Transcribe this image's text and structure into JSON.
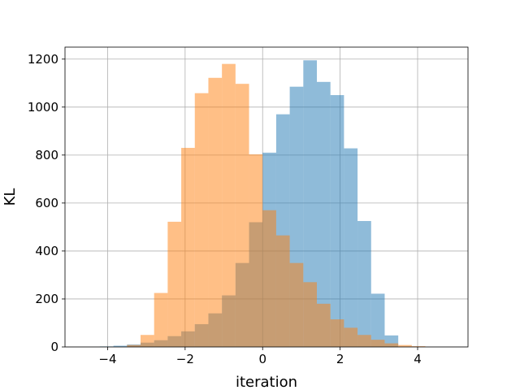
{
  "chart_data": {
    "type": "bar",
    "subtype": "overlapping-histogram",
    "xlabel": "iteration",
    "ylabel": "KL",
    "xlim": [
      -5.1,
      5.3
    ],
    "ylim": [
      0,
      1250
    ],
    "xticks": [
      -4,
      -2,
      0,
      2,
      4
    ],
    "yticks": [
      0,
      200,
      400,
      600,
      800,
      1000,
      1200
    ],
    "grid": true,
    "series": [
      {
        "color": "#1f77b4",
        "alpha": 0.5,
        "bins": [
          {
            "x0": -4.2,
            "x1": -3.85,
            "count": 2
          },
          {
            "x0": -3.85,
            "x1": -3.5,
            "count": 5
          },
          {
            "x0": -3.5,
            "x1": -3.15,
            "count": 10
          },
          {
            "x0": -3.15,
            "x1": -2.8,
            "count": 18
          },
          {
            "x0": -2.8,
            "x1": -2.45,
            "count": 28
          },
          {
            "x0": -2.45,
            "x1": -2.1,
            "count": 45
          },
          {
            "x0": -2.1,
            "x1": -1.75,
            "count": 65
          },
          {
            "x0": -1.75,
            "x1": -1.4,
            "count": 95
          },
          {
            "x0": -1.4,
            "x1": -1.05,
            "count": 140
          },
          {
            "x0": -1.05,
            "x1": -0.7,
            "count": 215
          },
          {
            "x0": -0.7,
            "x1": -0.35,
            "count": 350
          },
          {
            "x0": -0.35,
            "x1": 0.0,
            "count": 520
          },
          {
            "x0": 0.0,
            "x1": 0.35,
            "count": 810
          },
          {
            "x0": 0.35,
            "x1": 0.7,
            "count": 970
          },
          {
            "x0": 0.7,
            "x1": 1.05,
            "count": 1085
          },
          {
            "x0": 1.05,
            "x1": 1.4,
            "count": 1195
          },
          {
            "x0": 1.4,
            "x1": 1.75,
            "count": 1105
          },
          {
            "x0": 1.75,
            "x1": 2.1,
            "count": 1050
          },
          {
            "x0": 2.1,
            "x1": 2.45,
            "count": 828
          },
          {
            "x0": 2.45,
            "x1": 2.8,
            "count": 525
          },
          {
            "x0": 2.8,
            "x1": 3.15,
            "count": 222
          },
          {
            "x0": 3.15,
            "x1": 3.5,
            "count": 48
          }
        ]
      },
      {
        "color": "#ff7f0e",
        "alpha": 0.5,
        "bins": [
          {
            "x0": -3.5,
            "x1": -3.15,
            "count": 8
          },
          {
            "x0": -3.15,
            "x1": -2.8,
            "count": 50
          },
          {
            "x0": -2.8,
            "x1": -2.45,
            "count": 225
          },
          {
            "x0": -2.45,
            "x1": -2.1,
            "count": 522
          },
          {
            "x0": -2.1,
            "x1": -1.75,
            "count": 830
          },
          {
            "x0": -1.75,
            "x1": -1.4,
            "count": 1058
          },
          {
            "x0": -1.4,
            "x1": -1.05,
            "count": 1122
          },
          {
            "x0": -1.05,
            "x1": -0.7,
            "count": 1180
          },
          {
            "x0": -0.7,
            "x1": -0.35,
            "count": 1097
          },
          {
            "x0": -0.35,
            "x1": 0.0,
            "count": 803
          },
          {
            "x0": 0.0,
            "x1": 0.35,
            "count": 570
          },
          {
            "x0": 0.35,
            "x1": 0.7,
            "count": 465
          },
          {
            "x0": 0.7,
            "x1": 1.05,
            "count": 350
          },
          {
            "x0": 1.05,
            "x1": 1.4,
            "count": 270
          },
          {
            "x0": 1.4,
            "x1": 1.75,
            "count": 180
          },
          {
            "x0": 1.75,
            "x1": 2.1,
            "count": 115
          },
          {
            "x0": 2.1,
            "x1": 2.45,
            "count": 80
          },
          {
            "x0": 2.45,
            "x1": 2.8,
            "count": 50
          },
          {
            "x0": 2.8,
            "x1": 3.15,
            "count": 30
          },
          {
            "x0": 3.15,
            "x1": 3.5,
            "count": 15
          },
          {
            "x0": 3.5,
            "x1": 3.85,
            "count": 8
          },
          {
            "x0": 3.85,
            "x1": 4.2,
            "count": 3
          }
        ]
      }
    ]
  }
}
